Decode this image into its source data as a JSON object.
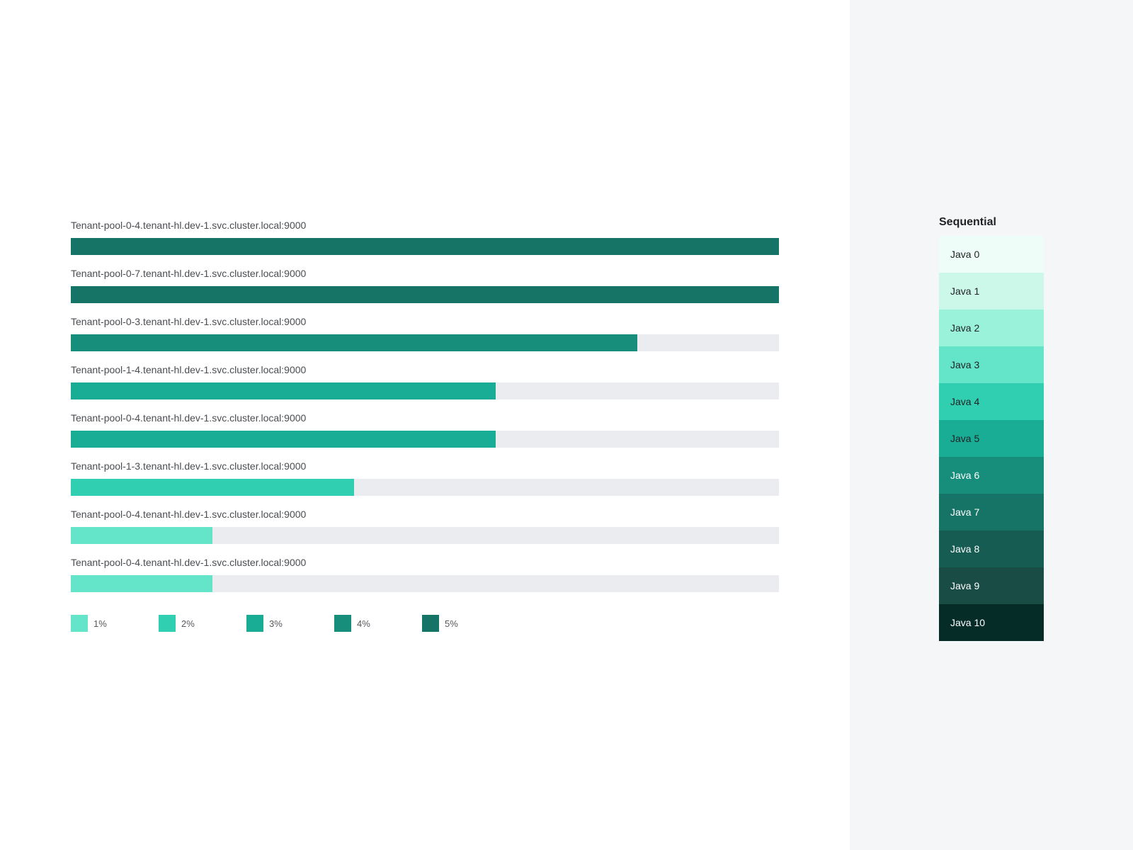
{
  "chart_data": {
    "type": "bar",
    "orientation": "horizontal",
    "title": "",
    "xlabel": "",
    "ylabel": "",
    "xlim": [
      0,
      100
    ],
    "grid": false,
    "legend_position": "bottom",
    "categories": [
      "Tenant-pool-0-4.tenant-hl.dev-1.svc.cluster.local:9000",
      "Tenant-pool-0-7.tenant-hl.dev-1.svc.cluster.local:9000",
      "Tenant-pool-0-3.tenant-hl.dev-1.svc.cluster.local:9000",
      "Tenant-pool-1-4.tenant-hl.dev-1.svc.cluster.local:9000",
      "Tenant-pool-0-4.tenant-hl.dev-1.svc.cluster.local:9000",
      "Tenant-pool-1-3.tenant-hl.dev-1.svc.cluster.local:9000",
      "Tenant-pool-0-4.tenant-hl.dev-1.svc.cluster.local:9000",
      "Tenant-pool-0-4.tenant-hl.dev-1.svc.cluster.local:9000"
    ],
    "values": [
      100,
      100,
      80,
      60,
      60,
      40,
      20,
      20
    ],
    "bar_levels": [
      "5%",
      "5%",
      "4%",
      "3%",
      "3%",
      "2%",
      "1%",
      "1%"
    ],
    "legend": [
      {
        "label": "1%",
        "color": "#64e4c8"
      },
      {
        "label": "2%",
        "color": "#31cfb1"
      },
      {
        "label": "3%",
        "color": "#19ad95"
      },
      {
        "label": "4%",
        "color": "#168e7b"
      },
      {
        "label": "5%",
        "color": "#157466"
      }
    ]
  },
  "bars": [
    {
      "label": "Tenant-pool-0-4.tenant-hl.dev-1.svc.cluster.local:9000",
      "pct": 100,
      "color": "#157466"
    },
    {
      "label": "Tenant-pool-0-7.tenant-hl.dev-1.svc.cluster.local:9000",
      "pct": 100,
      "color": "#157466"
    },
    {
      "label": "Tenant-pool-0-3.tenant-hl.dev-1.svc.cluster.local:9000",
      "pct": 80,
      "color": "#168e7b"
    },
    {
      "label": "Tenant-pool-1-4.tenant-hl.dev-1.svc.cluster.local:9000",
      "pct": 60,
      "color": "#19ad95"
    },
    {
      "label": "Tenant-pool-0-4.tenant-hl.dev-1.svc.cluster.local:9000",
      "pct": 60,
      "color": "#19ad95"
    },
    {
      "label": "Tenant-pool-1-3.tenant-hl.dev-1.svc.cluster.local:9000",
      "pct": 40,
      "color": "#31cfb1"
    },
    {
      "label": "Tenant-pool-0-4.tenant-hl.dev-1.svc.cluster.local:9000",
      "pct": 20,
      "color": "#64e4c8"
    },
    {
      "label": "Tenant-pool-0-4.tenant-hl.dev-1.svc.cluster.local:9000",
      "pct": 20,
      "color": "#64e4c8"
    }
  ],
  "legend": [
    {
      "label": "1%",
      "color": "#64e4c8"
    },
    {
      "label": "2%",
      "color": "#31cfb1"
    },
    {
      "label": "3%",
      "color": "#19ad95"
    },
    {
      "label": "4%",
      "color": "#168e7b"
    },
    {
      "label": "5%",
      "color": "#157466"
    }
  ],
  "colors": {
    "track": "#ebecf0",
    "side_panel_bg": "#f5f6f8"
  },
  "palette": {
    "title": "Sequential",
    "swatches": [
      {
        "label": "Java 0",
        "color": "#effdf8",
        "text": "#1f2124"
      },
      {
        "label": "Java 1",
        "color": "#ccf8ea",
        "text": "#1f2124"
      },
      {
        "label": "Java 2",
        "color": "#9af2da",
        "text": "#1f2124"
      },
      {
        "label": "Java 3",
        "color": "#64e4c8",
        "text": "#1f2124"
      },
      {
        "label": "Java 4",
        "color": "#31cfb1",
        "text": "#1f2124"
      },
      {
        "label": "Java 5",
        "color": "#19ad95",
        "text": "#1f2124"
      },
      {
        "label": "Java 6",
        "color": "#168e7b",
        "text": "#ffffff"
      },
      {
        "label": "Java 7",
        "color": "#157466",
        "text": "#ffffff"
      },
      {
        "label": "Java 8",
        "color": "#165c53",
        "text": "#ffffff"
      },
      {
        "label": "Java 9",
        "color": "#184c45",
        "text": "#ffffff"
      },
      {
        "label": "Java 10",
        "color": "#062c28",
        "text": "#ffffff"
      }
    ]
  }
}
